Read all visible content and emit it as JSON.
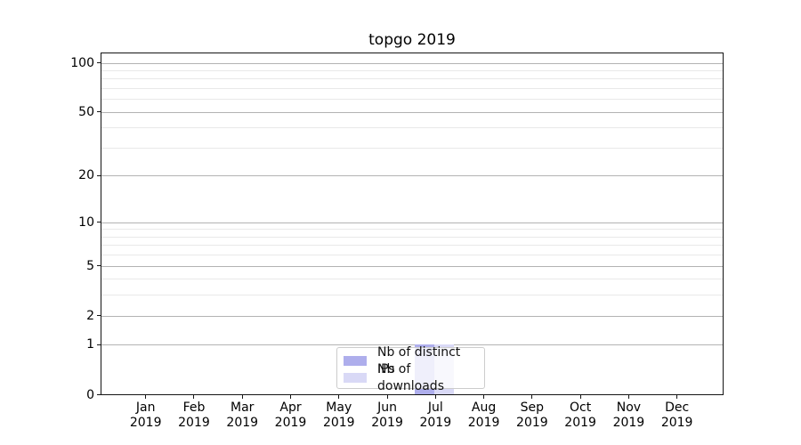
{
  "chart_data": {
    "type": "bar",
    "title": "topgo 2019",
    "x": [
      {
        "month": "Jan",
        "year": "2019"
      },
      {
        "month": "Feb",
        "year": "2019"
      },
      {
        "month": "Mar",
        "year": "2019"
      },
      {
        "month": "Apr",
        "year": "2019"
      },
      {
        "month": "May",
        "year": "2019"
      },
      {
        "month": "Jun",
        "year": "2019"
      },
      {
        "month": "Jul",
        "year": "2019"
      },
      {
        "month": "Aug",
        "year": "2019"
      },
      {
        "month": "Sep",
        "year": "2019"
      },
      {
        "month": "Oct",
        "year": "2019"
      },
      {
        "month": "Nov",
        "year": "2019"
      },
      {
        "month": "Dec",
        "year": "2019"
      }
    ],
    "series": [
      {
        "name": "Nb of distinct IPs",
        "color": "#aeaeec",
        "values": [
          0,
          0,
          0,
          0,
          0,
          0,
          1,
          0,
          0,
          0,
          0,
          0
        ]
      },
      {
        "name": "Nb of downloads",
        "color": "#d9d9f6",
        "values": [
          0,
          0,
          0,
          0,
          0,
          0,
          1,
          0,
          0,
          0,
          0,
          0
        ]
      }
    ],
    "y_axis": {
      "scale": "log1p",
      "major_ticks": [
        0,
        1,
        2,
        5,
        10,
        20,
        50,
        100
      ],
      "minor_gridlines": [
        3,
        4,
        6,
        7,
        8,
        9,
        30,
        40,
        60,
        70,
        80,
        90
      ],
      "ylim": [
        0,
        112
      ]
    },
    "grid": true,
    "legend_position": "lower center",
    "colors": {
      "spine": "#141414",
      "grid_major": "#b3b3b3",
      "grid_minor": "#e9e9e9",
      "legend_border": "#cccccc"
    }
  }
}
